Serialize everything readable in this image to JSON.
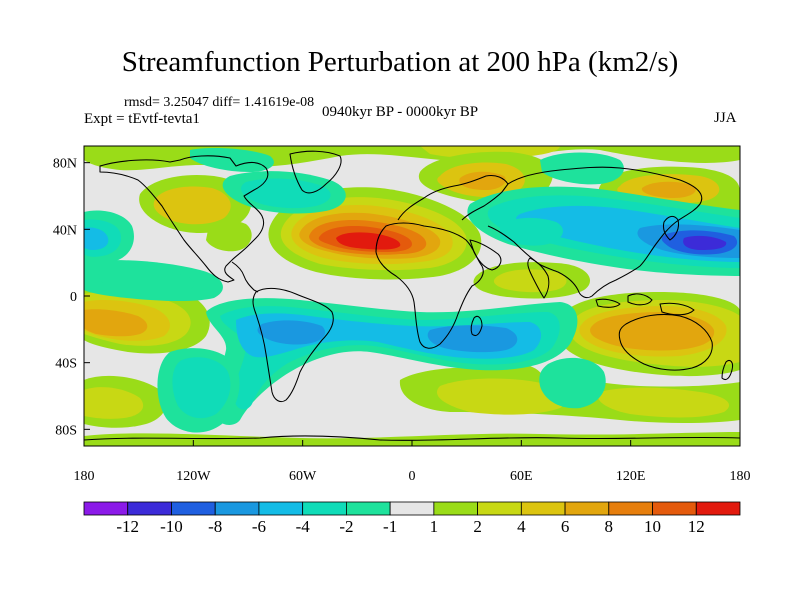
{
  "title": "Streamfunction Perturbation at 200 hPa (km2/s)",
  "subtitle": {
    "stats": "rmsd= 3.25047 diff= 1.41619e-08",
    "experiment": "Expt = tEvtf-tevta1",
    "period": "0940kyr BP - 0000kyr BP",
    "season": "JJA"
  },
  "colors": {
    "c_m12": "#8b1ae8",
    "c_m10": "#3c2bd8",
    "c_m8": "#1f5fe0",
    "c_m6": "#1a98e0",
    "c_m4": "#14bce6",
    "c_m2": "#10dcb8",
    "c_m1": "#1ee29c",
    "c_zero": "#e6e6e6",
    "c_1": "#9adc18",
    "c_2": "#c8d814",
    "c_4": "#dcc410",
    "c_6": "#e2a60e",
    "c_8": "#e67e0c",
    "c_10": "#e45a0c",
    "c_12": "#e21a0e"
  },
  "chart_data": {
    "type": "filled-contour-map",
    "variable": "Streamfunction Perturbation at 200 hPa",
    "units": "km2/s",
    "projection": "cylindrical equidistant",
    "lon_range": [
      -180,
      180
    ],
    "lat_range": [
      -90,
      90
    ],
    "x_ticks": [
      {
        "value": -180,
        "label": "180"
      },
      {
        "value": -120,
        "label": "120W"
      },
      {
        "value": -60,
        "label": "60W"
      },
      {
        "value": 0,
        "label": "0"
      },
      {
        "value": 60,
        "label": "60E"
      },
      {
        "value": 120,
        "label": "120E"
      },
      {
        "value": 180,
        "label": "180"
      }
    ],
    "y_ticks": [
      {
        "value": 80,
        "label": "80N"
      },
      {
        "value": 40,
        "label": "40N"
      },
      {
        "value": 0,
        "label": "0"
      },
      {
        "value": -40,
        "label": "40S"
      },
      {
        "value": -80,
        "label": "80S"
      }
    ],
    "contour_levels": [
      "-12",
      "-10",
      "-8",
      "-6",
      "-4",
      "-2",
      "-1",
      "1",
      "2",
      "4",
      "6",
      "8",
      "10",
      "12"
    ],
    "colorbar_colors": [
      "#8b1ae8",
      "#3c2bd8",
      "#1f5fe0",
      "#1a98e0",
      "#14bce6",
      "#10dcb8",
      "#1ee29c",
      "#e6e6e6",
      "#9adc18",
      "#c8d814",
      "#dcc410",
      "#e2a60e",
      "#e67e0c",
      "#e45a0c",
      "#e21a0e"
    ],
    "notable_features": [
      {
        "name": "max positive over N Africa / N Atlantic",
        "lon": -25,
        "lat": 30,
        "value": 12
      },
      {
        "name": "min negative NW Pacific",
        "lon": 165,
        "lat": 28,
        "value": -10
      },
      {
        "name": "negative band S Atlantic / S Indian",
        "lon": 30,
        "lat": -22,
        "value": -6
      },
      {
        "name": "positive over Australia",
        "lon": 130,
        "lat": -22,
        "value": 6
      }
    ]
  }
}
